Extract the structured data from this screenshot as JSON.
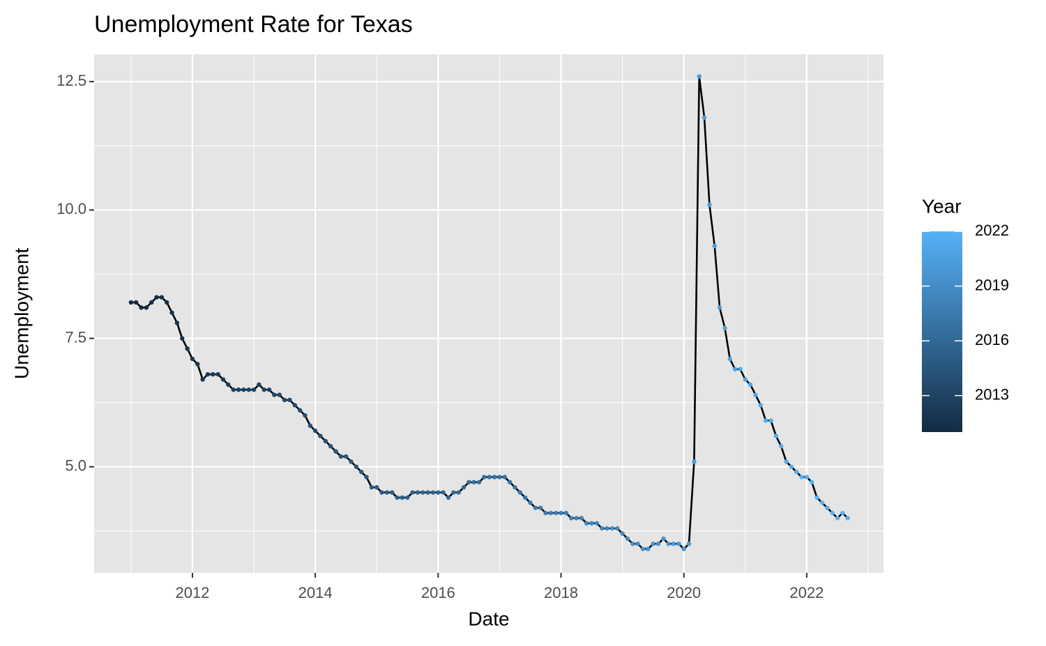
{
  "chart_data": {
    "type": "line",
    "title": "Unemployment Rate for Texas",
    "x_label": "Date",
    "y_label": "Unemployment",
    "x": [
      2011.0,
      2011.083,
      2011.167,
      2011.25,
      2011.333,
      2011.417,
      2011.5,
      2011.583,
      2011.667,
      2011.75,
      2011.833,
      2011.917,
      2012.0,
      2012.083,
      2012.167,
      2012.25,
      2012.333,
      2012.417,
      2012.5,
      2012.583,
      2012.667,
      2012.75,
      2012.833,
      2012.917,
      2013.0,
      2013.083,
      2013.167,
      2013.25,
      2013.333,
      2013.417,
      2013.5,
      2013.583,
      2013.667,
      2013.75,
      2013.833,
      2013.917,
      2014.0,
      2014.083,
      2014.167,
      2014.25,
      2014.333,
      2014.417,
      2014.5,
      2014.583,
      2014.667,
      2014.75,
      2014.833,
      2014.917,
      2015.0,
      2015.083,
      2015.167,
      2015.25,
      2015.333,
      2015.417,
      2015.5,
      2015.583,
      2015.667,
      2015.75,
      2015.833,
      2015.917,
      2016.0,
      2016.083,
      2016.167,
      2016.25,
      2016.333,
      2016.417,
      2016.5,
      2016.583,
      2016.667,
      2016.75,
      2016.833,
      2016.917,
      2017.0,
      2017.083,
      2017.167,
      2017.25,
      2017.333,
      2017.417,
      2017.5,
      2017.583,
      2017.667,
      2017.75,
      2017.833,
      2017.917,
      2018.0,
      2018.083,
      2018.167,
      2018.25,
      2018.333,
      2018.417,
      2018.5,
      2018.583,
      2018.667,
      2018.75,
      2018.833,
      2018.917,
      2019.0,
      2019.083,
      2019.167,
      2019.25,
      2019.333,
      2019.417,
      2019.5,
      2019.583,
      2019.667,
      2019.75,
      2019.833,
      2019.917,
      2020.0,
      2020.083,
      2020.167,
      2020.25,
      2020.333,
      2020.417,
      2020.5,
      2020.583,
      2020.667,
      2020.75,
      2020.833,
      2020.917,
      2021.0,
      2021.083,
      2021.167,
      2021.25,
      2021.333,
      2021.417,
      2021.5,
      2021.583,
      2021.667,
      2021.75,
      2021.833,
      2021.917,
      2022.0,
      2022.083,
      2022.167,
      2022.25,
      2022.333,
      2022.417,
      2022.5,
      2022.583,
      2022.667
    ],
    "values": [
      8.2,
      8.2,
      8.1,
      8.1,
      8.2,
      8.3,
      8.3,
      8.2,
      8.0,
      7.8,
      7.5,
      7.3,
      7.1,
      7.0,
      6.7,
      6.8,
      6.8,
      6.8,
      6.7,
      6.6,
      6.5,
      6.5,
      6.5,
      6.5,
      6.5,
      6.6,
      6.5,
      6.5,
      6.4,
      6.4,
      6.3,
      6.3,
      6.2,
      6.1,
      6.0,
      5.8,
      5.7,
      5.6,
      5.5,
      5.4,
      5.3,
      5.2,
      5.2,
      5.1,
      5.0,
      4.9,
      4.8,
      4.6,
      4.6,
      4.5,
      4.5,
      4.5,
      4.4,
      4.4,
      4.4,
      4.5,
      4.5,
      4.5,
      4.5,
      4.5,
      4.5,
      4.5,
      4.4,
      4.5,
      4.5,
      4.6,
      4.7,
      4.7,
      4.7,
      4.8,
      4.8,
      4.8,
      4.8,
      4.8,
      4.7,
      4.6,
      4.5,
      4.4,
      4.3,
      4.2,
      4.2,
      4.1,
      4.1,
      4.1,
      4.1,
      4.1,
      4.0,
      4.0,
      4.0,
      3.9,
      3.9,
      3.9,
      3.8,
      3.8,
      3.8,
      3.8,
      3.7,
      3.6,
      3.5,
      3.5,
      3.4,
      3.4,
      3.5,
      3.5,
      3.6,
      3.5,
      3.5,
      3.5,
      3.4,
      3.5,
      5.1,
      12.6,
      11.8,
      10.1,
      9.3,
      8.1,
      7.7,
      7.1,
      6.9,
      6.9,
      6.7,
      6.6,
      6.4,
      6.2,
      5.9,
      5.9,
      5.6,
      5.4,
      5.1,
      5.0,
      4.9,
      4.8,
      4.8,
      4.7,
      4.4,
      4.3,
      4.2,
      4.1,
      4.0,
      4.1,
      4.0
    ],
    "line_color": "#000000",
    "xlim": [
      2010.4,
      2023.25
    ],
    "xticks": [
      2012,
      2014,
      2016,
      2018,
      2020,
      2022
    ],
    "ylim": [
      2.935,
      13.03
    ],
    "yticks": [
      {
        "value": 5,
        "label": "5.0"
      },
      7.5,
      {
        "value": 10,
        "label": "10.0"
      },
      12.5
    ],
    "grid": true,
    "legend": {
      "title": "Year",
      "range": [
        2011,
        2022
      ],
      "ticks": [
        2013,
        2016,
        2019,
        2022
      ],
      "colors": [
        "#132B43",
        "#56B1F7"
      ],
      "position": "right"
    }
  }
}
